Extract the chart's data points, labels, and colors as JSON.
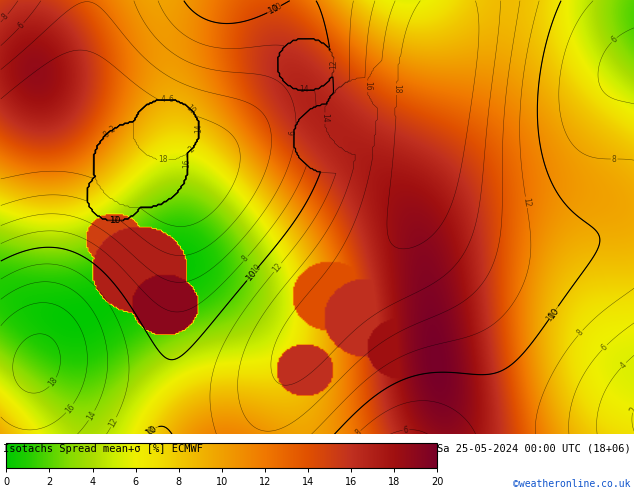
{
  "title_left": "Isotachs Spread mean+σ [%] ECMWF",
  "title_right": "Sa 25-05-2024 00:00 UTC (18+06)",
  "credit": "©weatheronline.co.uk",
  "colorbar_ticks": [
    0,
    2,
    4,
    6,
    8,
    10,
    12,
    14,
    16,
    18,
    20
  ],
  "colorbar_vmin": 0,
  "colorbar_vmax": 20,
  "cmap_stops": [
    [
      0.0,
      "#00c800"
    ],
    [
      0.05,
      "#22cc00"
    ],
    [
      0.1,
      "#55d400"
    ],
    [
      0.15,
      "#88dc00"
    ],
    [
      0.2,
      "#aadd00"
    ],
    [
      0.25,
      "#ccee00"
    ],
    [
      0.3,
      "#eef000"
    ],
    [
      0.35,
      "#f0e000"
    ],
    [
      0.4,
      "#f0c800"
    ],
    [
      0.5,
      "#f0a000"
    ],
    [
      0.6,
      "#f07800"
    ],
    [
      0.7,
      "#e05000"
    ],
    [
      0.8,
      "#c03020"
    ],
    [
      0.9,
      "#a01010"
    ],
    [
      1.0,
      "#780028"
    ]
  ],
  "fig_width": 6.34,
  "fig_height": 4.9,
  "dpi": 100
}
